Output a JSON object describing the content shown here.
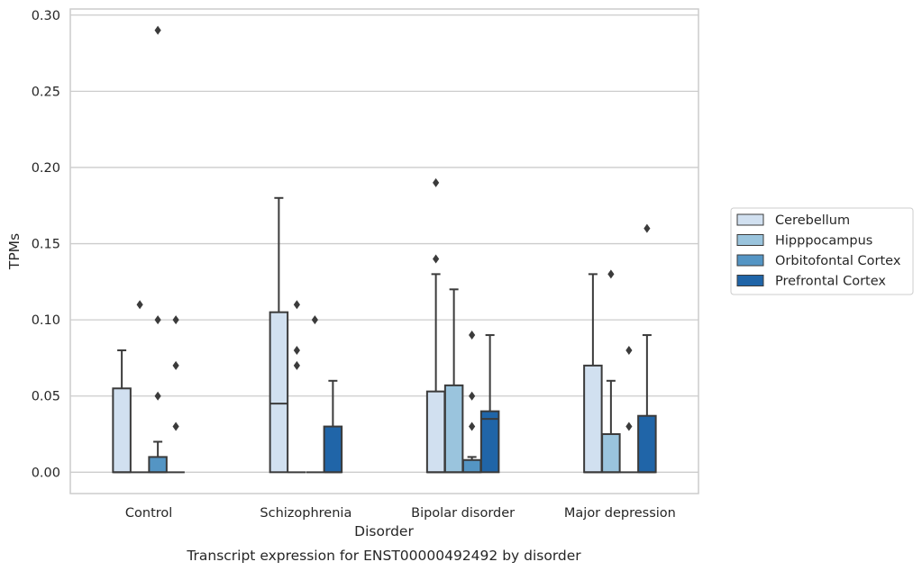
{
  "chart_data": {
    "type": "box",
    "xlabel": "Disorder",
    "ylabel": "TPMs",
    "caption": "Transcript expression for ENST00000492492 by disorder",
    "ylim": [
      -0.014,
      0.304
    ],
    "yticks": [
      "0.00",
      "0.05",
      "0.10",
      "0.15",
      "0.20",
      "0.25",
      "0.30"
    ],
    "ytick_values": [
      0,
      0.05,
      0.1,
      0.15,
      0.2,
      0.25,
      0.3
    ],
    "grid": "horizontal",
    "legend_position": "center-right",
    "categories": [
      "Control",
      "Schizophrenia",
      "Bipolar disorder",
      "Major depression"
    ],
    "series": [
      {
        "name": "Cerebellum",
        "color": "#d1e0f0",
        "boxes": [
          {
            "q1": 0,
            "median": 0,
            "q3": 0.055,
            "whislo": 0,
            "whishi": 0.08,
            "fliers": []
          },
          {
            "q1": 0,
            "median": 0.045,
            "q3": 0.105,
            "whislo": 0,
            "whishi": 0.18,
            "fliers": []
          },
          {
            "q1": 0,
            "median": 0,
            "q3": 0.053,
            "whislo": 0,
            "whishi": 0.13,
            "fliers": [
              0.14,
              0.19
            ]
          },
          {
            "q1": 0,
            "median": 0,
            "q3": 0.07,
            "whislo": 0,
            "whishi": 0.13,
            "fliers": []
          }
        ]
      },
      {
        "name": "Hipppocampus",
        "color": "#9ac4dd",
        "boxes": [
          {
            "q1": 0,
            "median": 0,
            "q3": 0,
            "whislo": 0,
            "whishi": 0,
            "fliers": [
              0.11
            ]
          },
          {
            "q1": 0,
            "median": 0,
            "q3": 0,
            "whislo": 0,
            "whishi": 0,
            "fliers": [
              0.07,
              0.08,
              0.11
            ]
          },
          {
            "q1": 0,
            "median": 0,
            "q3": 0.057,
            "whislo": 0,
            "whishi": 0.12,
            "fliers": []
          },
          {
            "q1": 0,
            "median": 0,
            "q3": 0.025,
            "whislo": 0,
            "whishi": 0.06,
            "fliers": [
              0.13
            ]
          }
        ]
      },
      {
        "name": "Orbitofontal Cortex",
        "color": "#5495c4",
        "boxes": [
          {
            "q1": 0,
            "median": 0,
            "q3": 0.01,
            "whislo": 0,
            "whishi": 0.02,
            "fliers": [
              0.05,
              0.1,
              0.29
            ]
          },
          {
            "q1": 0,
            "median": 0,
            "q3": 0,
            "whislo": 0,
            "whishi": 0,
            "fliers": [
              0.1
            ]
          },
          {
            "q1": 0,
            "median": 0,
            "q3": 0.008,
            "whislo": 0,
            "whishi": 0.01,
            "fliers": [
              0.03,
              0.05,
              0.09
            ]
          },
          {
            "q1": 0,
            "median": 0,
            "q3": 0,
            "whislo": 0,
            "whishi": 0,
            "fliers": [
              0.03,
              0.08
            ]
          }
        ]
      },
      {
        "name": "Prefrontal Cortex",
        "color": "#2065a8",
        "boxes": [
          {
            "q1": 0,
            "median": 0,
            "q3": 0,
            "whislo": 0,
            "whishi": 0,
            "fliers": [
              0.03,
              0.07,
              0.1
            ]
          },
          {
            "q1": 0,
            "median": 0,
            "q3": 0.03,
            "whislo": 0,
            "whishi": 0.06,
            "fliers": []
          },
          {
            "q1": 0,
            "median": 0.035,
            "q3": 0.04,
            "whislo": 0,
            "whishi": 0.09,
            "fliers": []
          },
          {
            "q1": 0,
            "median": 0,
            "q3": 0.037,
            "whislo": 0,
            "whishi": 0.09,
            "fliers": [
              0.16
            ]
          }
        ]
      }
    ]
  }
}
